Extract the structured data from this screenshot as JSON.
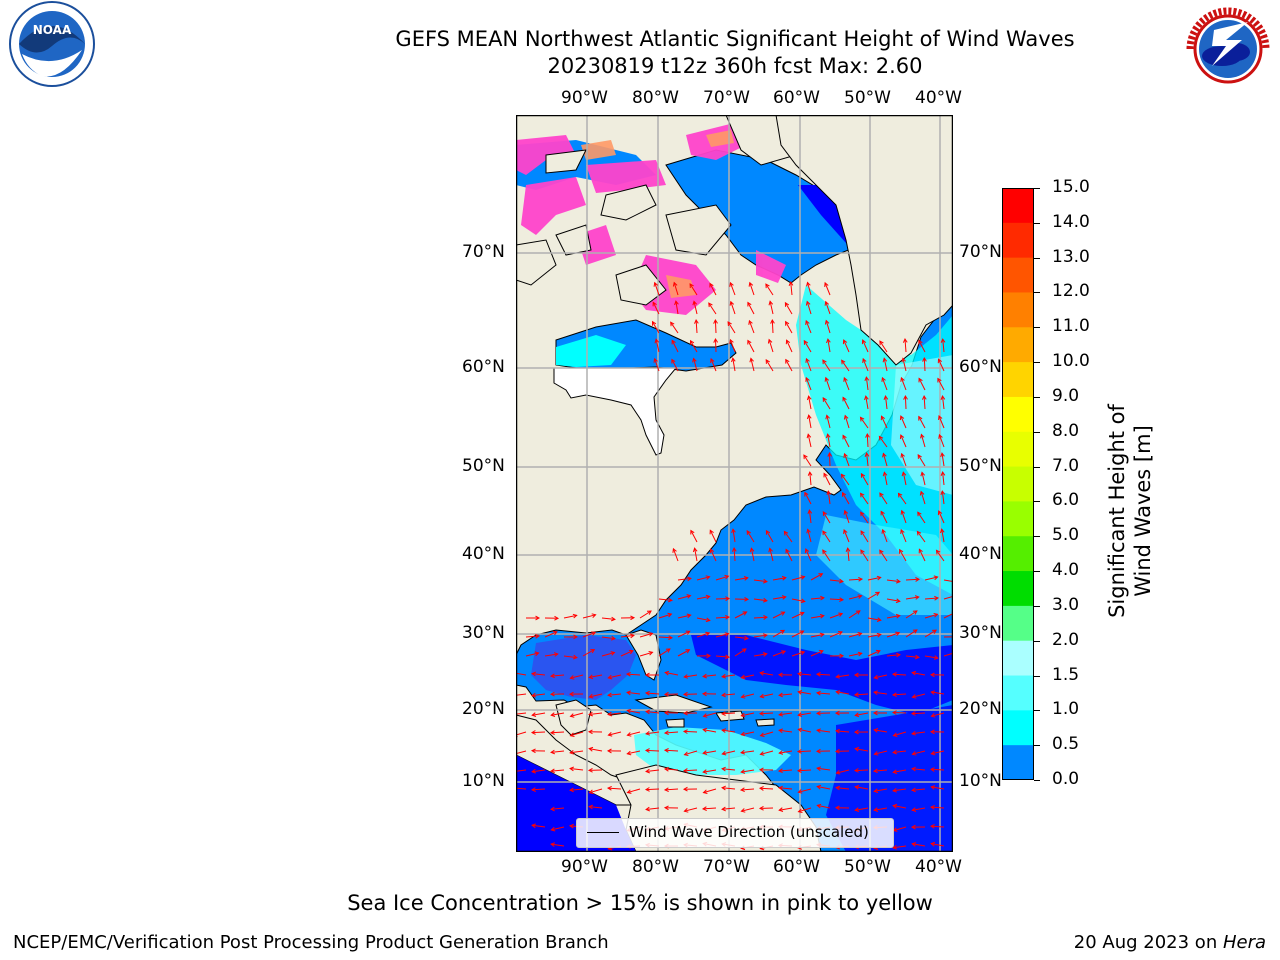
{
  "title": {
    "line1": "GEFS MEAN Northwest Atlantic Significant Height of Wind Waves",
    "line2": "20230819 t12z 360h fcst   Max: 2.60"
  },
  "logos": {
    "left_text": "NOAA",
    "left_ring": "NATIONAL OCEANIC AND ATMOSPHERIC ADMINISTRATION · U.S. DEPARTMENT OF COMMERCE",
    "right_ring": "NATIONAL WEATHER SERVICE"
  },
  "axes": {
    "lon_ticks": [
      "90°W",
      "80°W",
      "70°W",
      "60°W",
      "50°W",
      "40°W"
    ],
    "lat_ticks": [
      "70°N",
      "60°N",
      "50°N",
      "40°N",
      "30°N",
      "20°N",
      "10°N"
    ]
  },
  "colorbar": {
    "label": "Significant Height of Wind Waves [m]",
    "ticks": [
      "15.0",
      "14.0",
      "13.0",
      "12.0",
      "11.0",
      "10.0",
      "9.0",
      "8.0",
      "7.0",
      "6.0",
      "5.0",
      "4.0",
      "3.0",
      "2.0",
      "1.5",
      "1.0",
      "0.5",
      "0.0"
    ],
    "colors": [
      "#ff0000",
      "#ff2a00",
      "#ff5500",
      "#ff8000",
      "#ffaa00",
      "#ffd400",
      "#ffff00",
      "#e8ff00",
      "#c8ff00",
      "#99ff00",
      "#55ee00",
      "#00dd00",
      "#55ff88",
      "#aaffff",
      "#55ffff",
      "#00ffff",
      "#0088ff",
      "#0000ff"
    ]
  },
  "legend": {
    "label": "Wind Wave Direction (unscaled)"
  },
  "colors": {
    "land": "#efedde",
    "arrows": "#ff0000",
    "grid": "#b0b0b0",
    "ice_pink": "#ff44cc",
    "ice_orange": "#ff9966"
  },
  "footer": {
    "note": "Sea Ice Concentration > 15% is shown in pink to yellow",
    "left": "NCEP/EMC/Verification Post Processing Product Generation Branch",
    "right_prefix": "20 Aug 2023 on ",
    "right_host": "Hera"
  }
}
